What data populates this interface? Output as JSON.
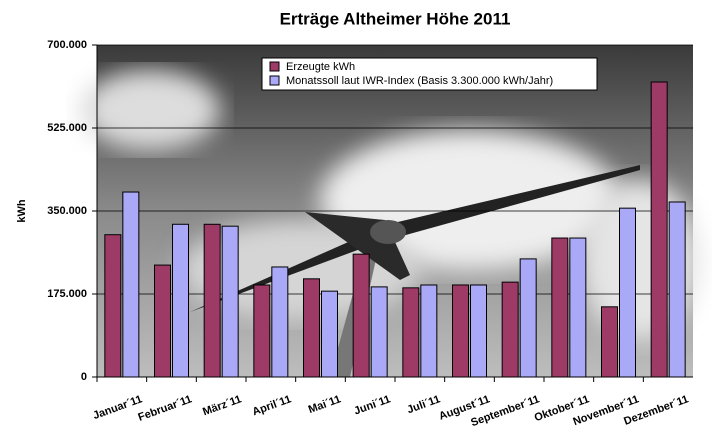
{
  "chart_data": {
    "type": "bar",
    "title": "Erträge Altheimer Höhe 2011",
    "y_label": "kWh",
    "categories": [
      "Januar´11",
      "Februar´11",
      "März´11",
      "April´11",
      "Mai´11",
      "Juni´11",
      "Juli´11",
      "August´11",
      "September´11",
      "Oktober´11",
      "November´11",
      "Dezember´11"
    ],
    "series": [
      {
        "name": "Erzeugte kWh",
        "color": "#9e3a66",
        "values": [
          300000,
          236000,
          322000,
          194000,
          207000,
          259000,
          188000,
          194000,
          200000,
          293000,
          148000,
          622000
        ]
      },
      {
        "name": "Monatssoll laut IWR-Index (Basis 3.300.000 kWh/Jahr)",
        "color": "#a9a9f7",
        "values": [
          390000,
          322000,
          318000,
          232000,
          181000,
          190000,
          194000,
          194000,
          249000,
          293000,
          356000,
          369000
        ]
      }
    ],
    "ylim": [
      0,
      700000
    ],
    "yticks": [
      0,
      {
        "value": 175000,
        "label": "175.000"
      },
      {
        "value": 350000,
        "label": "350.000"
      },
      {
        "value": 525000,
        "label": "525.000"
      },
      {
        "value": 700000,
        "label": "700.000"
      }
    ],
    "grid": true
  }
}
